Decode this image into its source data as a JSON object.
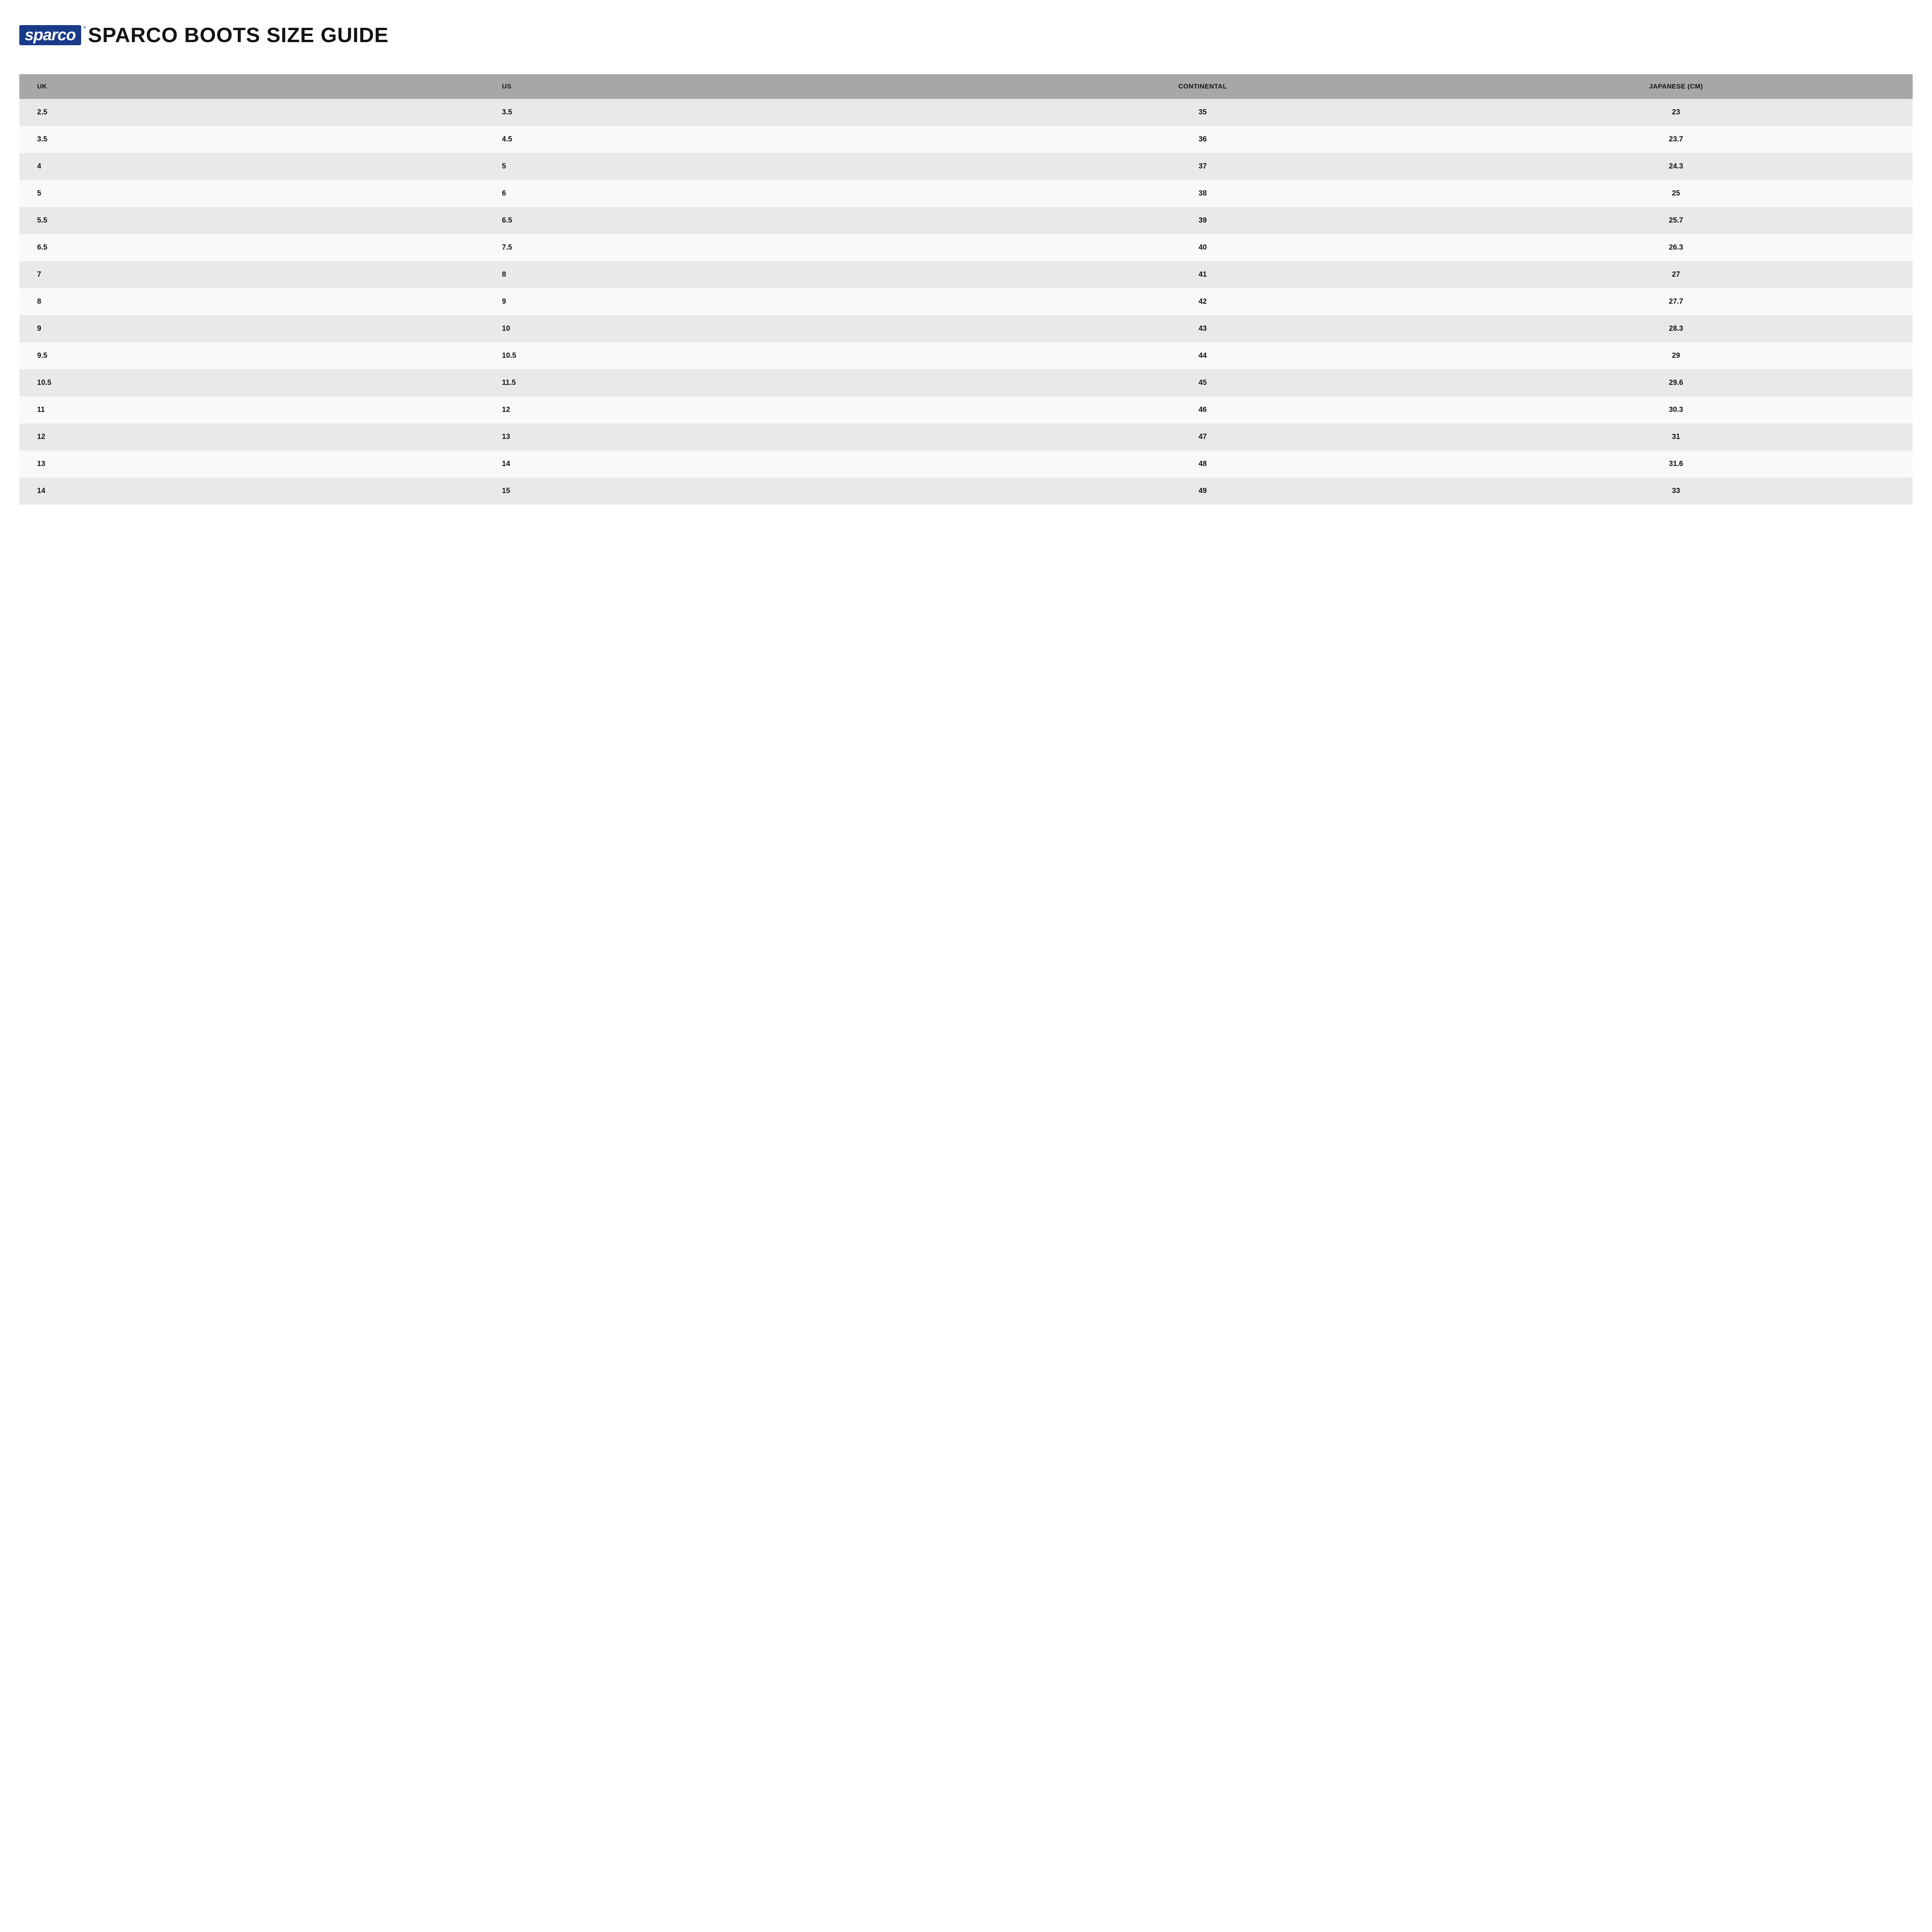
{
  "logo": {
    "text": "sparco",
    "trademark": "®"
  },
  "title": "SPARCO BOOTS SIZE GUIDE",
  "table": {
    "columns": [
      "UK",
      "US",
      "CONTINENTAL",
      "JAPANESE (CM)"
    ],
    "rows": [
      [
        "2.5",
        "3.5",
        "35",
        "23"
      ],
      [
        "3.5",
        "4.5",
        "36",
        "23.7"
      ],
      [
        "4",
        "5",
        "37",
        "24.3"
      ],
      [
        "5",
        "6",
        "38",
        "25"
      ],
      [
        "5.5",
        "6.5",
        "39",
        "25.7"
      ],
      [
        "6.5",
        "7.5",
        "40",
        "26.3"
      ],
      [
        "7",
        "8",
        "41",
        "27"
      ],
      [
        "8",
        "9",
        "42",
        "27.7"
      ],
      [
        "9",
        "10",
        "43",
        "28.3"
      ],
      [
        "9.5",
        "10.5",
        "44",
        "29"
      ],
      [
        "10.5",
        "11.5",
        "45",
        "29.6"
      ],
      [
        "11",
        "12",
        "46",
        "30.3"
      ],
      [
        "12",
        "13",
        "47",
        "31"
      ],
      [
        "13",
        "14",
        "48",
        "31.6"
      ],
      [
        "14",
        "15",
        "49",
        "33"
      ]
    ],
    "header_bg": "#a7a7a7",
    "row_odd_bg": "#e9e9e9",
    "row_even_bg": "#f9f9f9",
    "text_color": "#131313",
    "header_fontsize": 17,
    "cell_fontsize": 19
  },
  "colors": {
    "logo_bg": "#1a3a8a",
    "logo_text": "#ffffff",
    "background": "#ffffff"
  }
}
